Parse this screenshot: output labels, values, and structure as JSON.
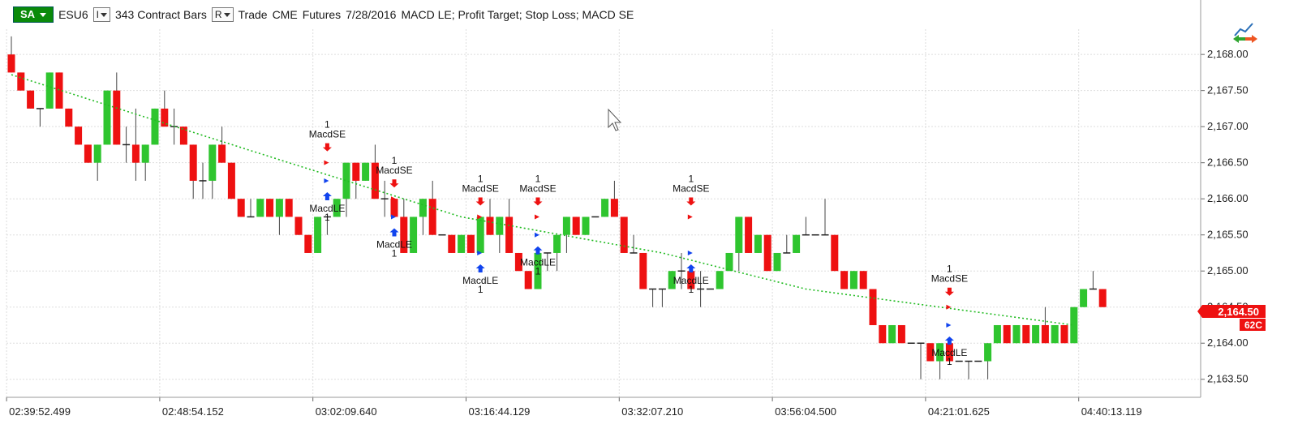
{
  "header": {
    "sa_label": "SA",
    "symbol": "ESU6",
    "interval_dropdown": "I",
    "bars": "343 Contract Bars",
    "range_dropdown": "R",
    "mode": "Trade",
    "exchange": "CME",
    "category": "Futures",
    "date": "7/28/2016",
    "strategies": "MACD LE; Profit Target; Stop Loss; MACD SE"
  },
  "colors": {
    "up": "#2fc52f",
    "down": "#ee1111",
    "wick": "#444444",
    "trend": "#22bb22",
    "short_arrow": "#ee1111",
    "long_arrow": "#1144ee",
    "price_tag": "#ee1111",
    "grid": "#dddddd"
  },
  "icons": {
    "corner": "strategy-arrows-icon",
    "cursor": "mouse-pointer-icon"
  },
  "price_tag": {
    "price": "2,164.50",
    "sub": "62C"
  },
  "chart_data": {
    "type": "candlestick",
    "ylim": [
      2163.25,
      2168.35
    ],
    "y_ticks": [
      {
        "v": 2168.0,
        "label": "2,168.00"
      },
      {
        "v": 2167.5,
        "label": "2,167.50"
      },
      {
        "v": 2167.0,
        "label": "2,167.00"
      },
      {
        "v": 2166.5,
        "label": "2,166.50"
      },
      {
        "v": 2166.0,
        "label": "2,166.00"
      },
      {
        "v": 2165.5,
        "label": "2,165.50"
      },
      {
        "v": 2165.0,
        "label": "2,165.00"
      },
      {
        "v": 2164.5,
        "label": "2,164.50"
      },
      {
        "v": 2164.0,
        "label": "2,164.00"
      },
      {
        "v": 2163.5,
        "label": "2,163.50"
      }
    ],
    "x_ticks": [
      {
        "bar": 0,
        "label": "02:39:52.499"
      },
      {
        "bar": 16,
        "label": "02:48:54.152"
      },
      {
        "bar": 32,
        "label": "03:02:09.640"
      },
      {
        "bar": 48,
        "label": "03:16:44.129"
      },
      {
        "bar": 64,
        "label": "03:32:07.210"
      },
      {
        "bar": 80,
        "label": "03:56:04.500"
      },
      {
        "bar": 96,
        "label": "04:21:01.625"
      },
      {
        "bar": 112,
        "label": "04:40:13.119"
      }
    ],
    "bars": [
      [
        2168.0,
        2168.25,
        2167.75,
        2167.75
      ],
      [
        2167.75,
        2167.75,
        2167.5,
        2167.5
      ],
      [
        2167.5,
        2167.5,
        2167.25,
        2167.25
      ],
      [
        2167.25,
        2167.25,
        2167.0,
        2167.25
      ],
      [
        2167.25,
        2167.75,
        2167.25,
        2167.75
      ],
      [
        2167.75,
        2167.75,
        2167.25,
        2167.25
      ],
      [
        2167.25,
        2167.25,
        2167.0,
        2167.0
      ],
      [
        2167.0,
        2167.0,
        2166.75,
        2166.75
      ],
      [
        2166.75,
        2166.75,
        2166.5,
        2166.5
      ],
      [
        2166.5,
        2166.75,
        2166.25,
        2166.75
      ],
      [
        2166.75,
        2167.5,
        2166.75,
        2167.5
      ],
      [
        2167.5,
        2167.75,
        2166.75,
        2166.75
      ],
      [
        2166.75,
        2167.0,
        2166.5,
        2166.75
      ],
      [
        2166.75,
        2167.25,
        2166.25,
        2166.5
      ],
      [
        2166.5,
        2166.75,
        2166.25,
        2166.75
      ],
      [
        2166.75,
        2167.25,
        2166.75,
        2167.25
      ],
      [
        2167.25,
        2167.5,
        2167.0,
        2167.0
      ],
      [
        2167.0,
        2167.25,
        2166.75,
        2167.0
      ],
      [
        2167.0,
        2167.0,
        2166.75,
        2166.75
      ],
      [
        2166.75,
        2166.75,
        2166.0,
        2166.25
      ],
      [
        2166.25,
        2166.5,
        2166.0,
        2166.25
      ],
      [
        2166.25,
        2166.75,
        2166.0,
        2166.75
      ],
      [
        2166.75,
        2167.0,
        2166.5,
        2166.5
      ],
      [
        2166.5,
        2166.5,
        2166.0,
        2166.0
      ],
      [
        2166.0,
        2166.0,
        2165.75,
        2165.75
      ],
      [
        2165.75,
        2166.0,
        2165.75,
        2165.75
      ],
      [
        2165.75,
        2166.0,
        2165.75,
        2166.0
      ],
      [
        2166.0,
        2166.0,
        2165.75,
        2165.75
      ],
      [
        2165.75,
        2166.0,
        2165.5,
        2166.0
      ],
      [
        2166.0,
        2166.0,
        2165.75,
        2165.75
      ],
      [
        2165.75,
        2165.75,
        2165.5,
        2165.5
      ],
      [
        2165.5,
        2165.5,
        2165.25,
        2165.25
      ],
      [
        2165.25,
        2165.75,
        2165.25,
        2165.75
      ],
      [
        2165.75,
        2165.75,
        2165.5,
        2165.75
      ],
      [
        2165.75,
        2166.0,
        2165.75,
        2166.0
      ],
      [
        2166.0,
        2166.5,
        2165.75,
        2166.5
      ],
      [
        2166.5,
        2166.5,
        2166.0,
        2166.25
      ],
      [
        2166.25,
        2166.5,
        2166.25,
        2166.5
      ],
      [
        2166.5,
        2166.75,
        2166.0,
        2166.0
      ],
      [
        2166.0,
        2166.25,
        2165.75,
        2166.0
      ],
      [
        2166.0,
        2166.0,
        2165.75,
        2165.75
      ],
      [
        2165.75,
        2166.0,
        2165.25,
        2165.25
      ],
      [
        2165.25,
        2165.75,
        2165.25,
        2165.75
      ],
      [
        2165.75,
        2166.0,
        2165.5,
        2166.0
      ],
      [
        2166.0,
        2166.25,
        2165.5,
        2165.5
      ],
      [
        2165.5,
        2165.5,
        2165.5,
        2165.5
      ],
      [
        2165.5,
        2165.5,
        2165.25,
        2165.25
      ],
      [
        2165.25,
        2165.5,
        2165.25,
        2165.5
      ],
      [
        2165.5,
        2165.5,
        2165.25,
        2165.25
      ],
      [
        2165.25,
        2165.75,
        2165.25,
        2165.75
      ],
      [
        2165.75,
        2166.0,
        2165.5,
        2165.5
      ],
      [
        2165.5,
        2165.75,
        2165.25,
        2165.75
      ],
      [
        2165.75,
        2166.0,
        2165.25,
        2165.25
      ],
      [
        2165.25,
        2165.25,
        2165.0,
        2165.0
      ],
      [
        2165.0,
        2165.0,
        2164.75,
        2164.75
      ],
      [
        2164.75,
        2165.25,
        2164.75,
        2165.25
      ],
      [
        2165.25,
        2165.25,
        2165.0,
        2165.25
      ],
      [
        2165.25,
        2165.5,
        2165.0,
        2165.5
      ],
      [
        2165.5,
        2165.75,
        2165.25,
        2165.75
      ],
      [
        2165.75,
        2165.75,
        2165.5,
        2165.5
      ],
      [
        2165.5,
        2165.75,
        2165.5,
        2165.75
      ],
      [
        2165.75,
        2165.75,
        2165.75,
        2165.75
      ],
      [
        2165.75,
        2166.0,
        2165.75,
        2166.0
      ],
      [
        2166.0,
        2166.25,
        2165.75,
        2165.75
      ],
      [
        2165.75,
        2165.75,
        2165.25,
        2165.25
      ],
      [
        2165.25,
        2165.5,
        2165.25,
        2165.25
      ],
      [
        2165.25,
        2165.25,
        2164.75,
        2164.75
      ],
      [
        2164.75,
        2164.75,
        2164.5,
        2164.75
      ],
      [
        2164.75,
        2164.75,
        2164.5,
        2164.75
      ],
      [
        2164.75,
        2165.0,
        2164.75,
        2165.0
      ],
      [
        2165.0,
        2165.25,
        2164.75,
        2165.0
      ],
      [
        2165.0,
        2165.0,
        2164.75,
        2164.75
      ],
      [
        2164.75,
        2165.0,
        2164.5,
        2164.75
      ],
      [
        2164.75,
        2164.75,
        2164.75,
        2164.75
      ],
      [
        2164.75,
        2165.0,
        2164.75,
        2165.0
      ],
      [
        2165.0,
        2165.25,
        2165.0,
        2165.25
      ],
      [
        2165.25,
        2165.75,
        2165.0,
        2165.75
      ],
      [
        2165.75,
        2165.75,
        2165.25,
        2165.25
      ],
      [
        2165.25,
        2165.5,
        2165.25,
        2165.5
      ],
      [
        2165.5,
        2165.5,
        2165.0,
        2165.0
      ],
      [
        2165.0,
        2165.25,
        2165.0,
        2165.25
      ],
      [
        2165.25,
        2165.5,
        2165.25,
        2165.25
      ],
      [
        2165.25,
        2165.5,
        2165.25,
        2165.5
      ],
      [
        2165.5,
        2165.75,
        2165.5,
        2165.5
      ],
      [
        2165.5,
        2165.5,
        2165.5,
        2165.5
      ],
      [
        2165.5,
        2166.0,
        2165.5,
        2165.5
      ],
      [
        2165.5,
        2165.5,
        2165.0,
        2165.0
      ],
      [
        2165.0,
        2165.0,
        2164.75,
        2164.75
      ],
      [
        2164.75,
        2165.0,
        2164.75,
        2165.0
      ],
      [
        2165.0,
        2165.0,
        2164.75,
        2164.75
      ],
      [
        2164.75,
        2164.75,
        2164.25,
        2164.25
      ],
      [
        2164.25,
        2164.25,
        2164.0,
        2164.0
      ],
      [
        2164.0,
        2164.25,
        2164.0,
        2164.25
      ],
      [
        2164.25,
        2164.25,
        2164.0,
        2164.0
      ],
      [
        2164.0,
        2164.0,
        2164.0,
        2164.0
      ],
      [
        2164.0,
        2164.0,
        2163.5,
        2164.0
      ],
      [
        2164.0,
        2164.0,
        2163.75,
        2163.75
      ],
      [
        2163.75,
        2164.0,
        2163.5,
        2164.0
      ],
      [
        2164.0,
        2164.0,
        2163.75,
        2163.75
      ],
      [
        2163.75,
        2163.75,
        2163.75,
        2163.75
      ],
      [
        2163.75,
        2163.75,
        2163.5,
        2163.75
      ],
      [
        2163.75,
        2163.75,
        2163.75,
        2163.75
      ],
      [
        2163.75,
        2164.0,
        2163.5,
        2164.0
      ],
      [
        2164.0,
        2164.25,
        2164.0,
        2164.25
      ],
      [
        2164.25,
        2164.25,
        2164.0,
        2164.0
      ],
      [
        2164.0,
        2164.25,
        2164.0,
        2164.25
      ],
      [
        2164.25,
        2164.25,
        2164.0,
        2164.0
      ],
      [
        2164.0,
        2164.25,
        2164.0,
        2164.25
      ],
      [
        2164.25,
        2164.5,
        2164.0,
        2164.0
      ],
      [
        2164.0,
        2164.25,
        2164.0,
        2164.25
      ],
      [
        2164.25,
        2164.25,
        2164.0,
        2164.0
      ],
      [
        2164.0,
        2164.5,
        2164.0,
        2164.5
      ],
      [
        2164.5,
        2164.75,
        2164.5,
        2164.75
      ],
      [
        2164.75,
        2165.0,
        2164.75,
        2164.75
      ],
      [
        2164.75,
        2164.75,
        2164.5,
        2164.5
      ]
    ],
    "trend_line": [
      {
        "bar": 0,
        "price": 2167.72
      },
      {
        "bar": 29,
        "price": 2166.5
      },
      {
        "bar": 47,
        "price": 2165.75
      },
      {
        "bar": 68,
        "price": 2165.25
      },
      {
        "bar": 83,
        "price": 2164.75
      },
      {
        "bar": 111,
        "price": 2164.25
      }
    ],
    "signals": [
      {
        "bar": 33,
        "type": "short",
        "label": "MacdSE",
        "qty": "1",
        "price": 2166.5
      },
      {
        "bar": 33,
        "type": "long",
        "label": "MacdLE",
        "qty": "1",
        "price": 2166.25
      },
      {
        "bar": 40,
        "type": "short",
        "label": "MacdSE",
        "qty": "1",
        "price": 2166.0
      },
      {
        "bar": 40,
        "type": "long",
        "label": "MacdLE",
        "qty": "1",
        "price": 2165.75
      },
      {
        "bar": 49,
        "type": "short",
        "label": "MacdSE",
        "qty": "1",
        "price": 2165.75
      },
      {
        "bar": 49,
        "type": "long",
        "label": "MacdLE",
        "qty": "1",
        "price": 2165.25
      },
      {
        "bar": 55,
        "type": "short",
        "label": "MacdSE",
        "qty": "1",
        "price": 2165.75
      },
      {
        "bar": 55,
        "type": "long",
        "label": "MacdLE",
        "qty": "1",
        "price": 2165.5
      },
      {
        "bar": 71,
        "type": "short",
        "label": "MacdSE",
        "qty": "1",
        "price": 2165.75
      },
      {
        "bar": 71,
        "type": "long",
        "label": "MacdLE",
        "qty": "1",
        "price": 2165.25
      },
      {
        "bar": 98,
        "type": "short",
        "label": "MacdSE",
        "qty": "1",
        "price": 2164.5
      },
      {
        "bar": 98,
        "type": "long",
        "label": "MacdLE",
        "qty": "1",
        "price": 2164.25
      }
    ]
  }
}
